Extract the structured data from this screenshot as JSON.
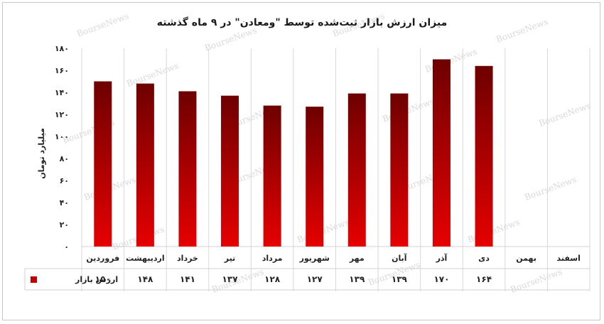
{
  "chart_data": {
    "type": "bar",
    "title": "میزان ارزش بازار ثبت‌شده توسط \"ومعادن\" در ۹ ماه گذشته",
    "ylabel": "میلیارد تومان",
    "ylim": [
      0,
      180
    ],
    "yticks": [
      "۰",
      "۲۰",
      "۴۰",
      "۶۰",
      "۸۰",
      "۱۰۰",
      "۱۲۰",
      "۱۴۰",
      "۱۶۰",
      "۱۸۰"
    ],
    "categories": [
      "فروردین",
      "اردیبهشت",
      "خرداد",
      "تیر",
      "مرداد",
      "شهریور",
      "مهر",
      "آبان",
      "آذر",
      "دی",
      "بهمن",
      "اسفند"
    ],
    "series": [
      {
        "name": "ارزش بازار",
        "values": [
          150,
          148,
          141,
          137,
          128,
          127,
          139,
          139,
          170,
          164,
          null,
          null
        ],
        "labels": [
          "۱۵۰",
          "۱۴۸",
          "۱۴۱",
          "۱۳۷",
          "۱۲۸",
          "۱۲۷",
          "۱۳۹",
          "۱۳۹",
          "۱۷۰",
          "۱۶۴",
          "",
          ""
        ]
      }
    ],
    "grid": false,
    "legend": "bottom-left data table",
    "colors": {
      "bar_top": "#6e0000",
      "bar_bottom": "#e60000",
      "legend_swatch": "#c00000"
    }
  },
  "watermark": "BourseNews"
}
